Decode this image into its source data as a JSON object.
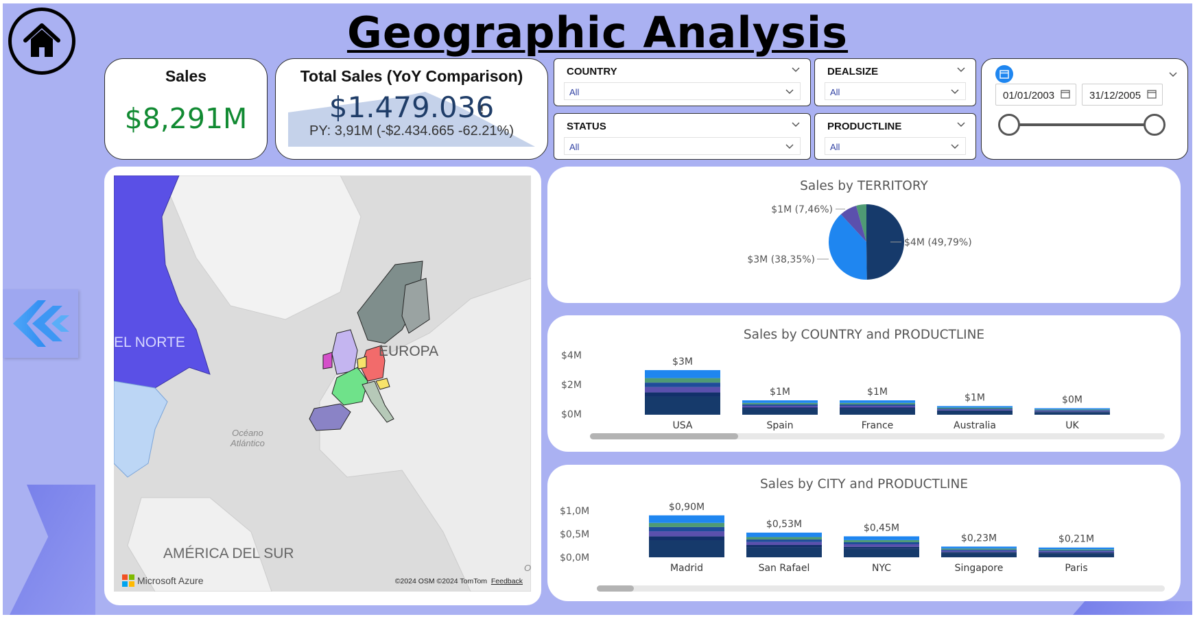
{
  "header": {
    "title": "Geographic Analysis"
  },
  "kpi_sales": {
    "title": "Sales",
    "value": "$8,291M"
  },
  "kpi_yoy": {
    "title": "Total Sales (YoY Comparison)",
    "value": "$1.479.036",
    "warning": "!",
    "py_text": "PY: 3,91M (-$2.434.665 -62.21%)"
  },
  "slicers": {
    "country": {
      "label": "COUNTRY",
      "value": "All"
    },
    "dealsize": {
      "label": "DEALSIZE",
      "value": "All"
    },
    "status": {
      "label": "STATUS",
      "value": "All"
    },
    "productline": {
      "label": "PRODUCTLINE",
      "value": "All"
    }
  },
  "date_range": {
    "start": "01/01/2003",
    "end": "31/12/2005"
  },
  "map": {
    "labels": {
      "north": "EL NORTE",
      "europe": "EUROPA",
      "ocean": "Océano\nAtlántico",
      "south": "AMÉRICA DEL SUR",
      "lower_right": "O"
    },
    "brand": "Microsoft Azure",
    "copyright": "©2024 OSM  ©2024 TomTom",
    "feedback": "Feedback",
    "colors": {
      "north_america": "#5a50e6",
      "usa": "#bcd6f5",
      "france": "#6fe28a",
      "germany": "#f26b6b",
      "spain": "#8a83c6",
      "scandinavia": "#7f8e8c",
      "uk": "#c4b5f0",
      "ireland": "#d44fc9"
    }
  },
  "charts": {
    "territory": {
      "title": "Sales by TERRITORY",
      "labels": [
        "$4M (49,79%)",
        "$3M (38,35%)",
        "$1M (7,46%)"
      ]
    },
    "country": {
      "title": "Sales by COUNTRY and PRODUCTLINE",
      "y_ticks": [
        "$4M",
        "$2M",
        "$0M"
      ],
      "data_labels": [
        "$3M",
        "$1M",
        "$1M",
        "$1M",
        "$0M"
      ]
    },
    "city": {
      "title": "Sales by CITY and PRODUCTLINE",
      "y_ticks": [
        "$1,0M",
        "$0,5M",
        "$0,0M"
      ],
      "data_labels": [
        "$0,90M",
        "$0,53M",
        "$0,45M",
        "$0,23M",
        "$0,21M"
      ]
    }
  },
  "chart_data": [
    {
      "type": "pie",
      "title": "Sales by TERRITORY",
      "slices": [
        {
          "label": "$4M (49,79%)",
          "value": 49.79,
          "color": "#163a6b"
        },
        {
          "label": "$3M (38,35%)",
          "value": 38.35,
          "color": "#1f86f0"
        },
        {
          "label": "$1M (7,46%)",
          "value": 7.46,
          "color": "#5b50ad"
        },
        {
          "label": "",
          "value": 4.4,
          "color": "#4f9a74"
        }
      ]
    },
    {
      "type": "bar",
      "title": "Sales by COUNTRY and PRODUCTLINE",
      "categories": [
        "USA",
        "Spain",
        "France",
        "Australia",
        "UK"
      ],
      "values": [
        3.1,
        1.0,
        1.0,
        0.6,
        0.45
      ],
      "ylim": [
        0,
        4
      ],
      "stacked": true
    },
    {
      "type": "bar",
      "title": "Sales by CITY and PRODUCTLINE",
      "categories": [
        "Madrid",
        "San Rafael",
        "NYC",
        "Singapore",
        "Paris"
      ],
      "values": [
        0.9,
        0.53,
        0.45,
        0.23,
        0.21
      ],
      "ylim": [
        0,
        1.0
      ],
      "stacked": true
    }
  ]
}
